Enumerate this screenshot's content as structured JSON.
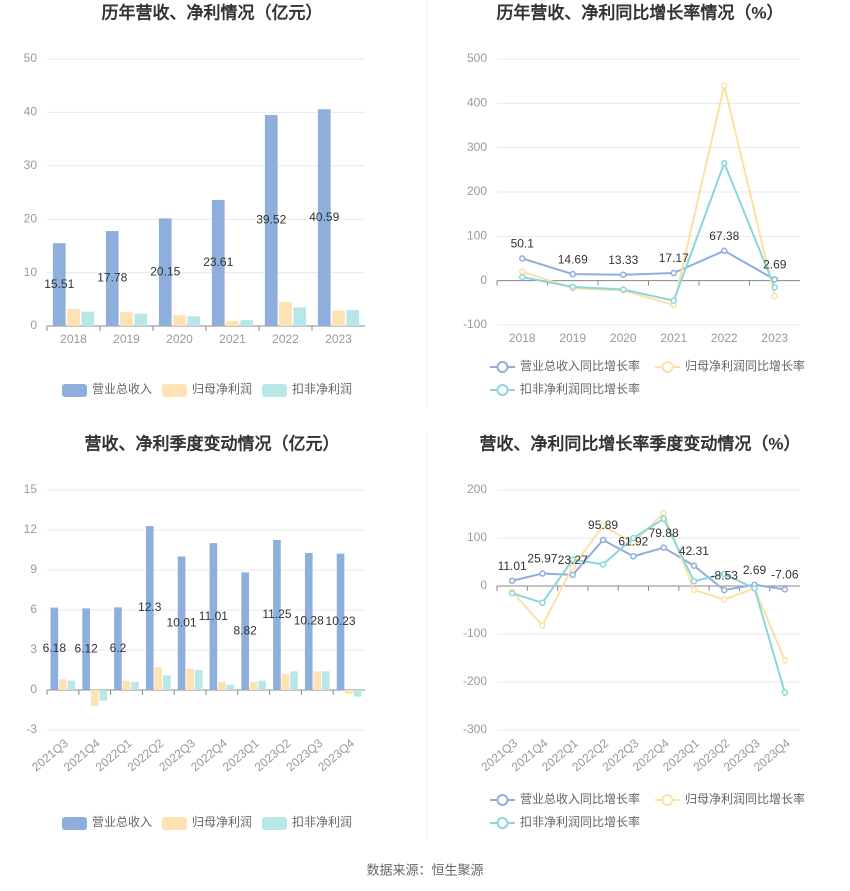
{
  "chart_data": [
    {
      "type": "bar",
      "title": "历年营收、净利情况（亿元）",
      "categories": [
        "2018",
        "2019",
        "2020",
        "2021",
        "2022",
        "2023"
      ],
      "series": [
        {
          "name": "营业总收入",
          "color": "#8eaedc",
          "values": [
            15.51,
            17.78,
            20.15,
            23.61,
            39.52,
            40.59
          ],
          "show_labels": true
        },
        {
          "name": "归母净利润",
          "color": "#fde3b3",
          "values": [
            3.2,
            2.6,
            2.0,
            0.9,
            4.5,
            2.9
          ]
        },
        {
          "name": "扣非净利润",
          "color": "#b9e6e6",
          "values": [
            2.7,
            2.3,
            1.8,
            1.1,
            3.5,
            3.0
          ]
        }
      ],
      "ylim": [
        0,
        50
      ],
      "yticks": [
        0,
        10,
        20,
        30,
        40,
        50
      ],
      "grid": true
    },
    {
      "type": "line",
      "title": "历年营收、净利同比增长率情况（%）",
      "categories": [
        "2018",
        "2019",
        "2020",
        "2021",
        "2022",
        "2023"
      ],
      "series": [
        {
          "name": "营业总收入同比增长率",
          "color": "#8eaedc",
          "values": [
            50.1,
            14.69,
            13.33,
            17.17,
            67.38,
            2.69
          ],
          "show_labels": true
        },
        {
          "name": "归母净利润同比增长率",
          "color": "#fde0a6",
          "values": [
            20,
            -17,
            -22,
            -55,
            440,
            -35
          ]
        },
        {
          "name": "扣非净利润同比增长率",
          "color": "#8ad6dc",
          "values": [
            8,
            -14,
            -20,
            -45,
            265,
            -15
          ]
        }
      ],
      "ylim": [
        -100,
        500
      ],
      "yticks": [
        -100,
        0,
        100,
        200,
        300,
        400,
        500
      ],
      "grid": true
    },
    {
      "type": "bar",
      "title": "营收、净利季度变动情况（亿元）",
      "categories": [
        "2021Q3",
        "2021Q4",
        "2022Q1",
        "2022Q2",
        "2022Q3",
        "2022Q4",
        "2023Q1",
        "2023Q2",
        "2023Q3",
        "2023Q4"
      ],
      "series": [
        {
          "name": "营业总收入",
          "color": "#8eaedc",
          "values": [
            6.18,
            6.12,
            6.2,
            12.3,
            10.01,
            11.01,
            8.82,
            11.25,
            10.28,
            10.23
          ],
          "show_labels": true
        },
        {
          "name": "归母净利润",
          "color": "#fde3b3",
          "values": [
            0.8,
            -1.2,
            0.7,
            1.7,
            1.6,
            0.6,
            0.6,
            1.2,
            1.4,
            -0.3
          ]
        },
        {
          "name": "扣非净利润",
          "color": "#b9e6e6",
          "values": [
            0.7,
            -0.8,
            0.6,
            1.1,
            1.5,
            0.4,
            0.7,
            1.4,
            1.4,
            -0.5
          ]
        }
      ],
      "ylim": [
        -3,
        15
      ],
      "yticks": [
        -3,
        0,
        3,
        6,
        9,
        12,
        15
      ],
      "grid": true
    },
    {
      "type": "line",
      "title": "营收、净利同比增长率季度变动情况（%）",
      "categories": [
        "2021Q3",
        "2021Q4",
        "2022Q1",
        "2022Q2",
        "2022Q3",
        "2022Q4",
        "2023Q1",
        "2023Q2",
        "2023Q3",
        "2023Q4"
      ],
      "series": [
        {
          "name": "营业总收入同比增长率",
          "color": "#8eaedc",
          "values": [
            11.01,
            25.97,
            23.27,
            95.89,
            61.92,
            79.88,
            42.31,
            -8.53,
            2.69,
            -7.06
          ],
          "show_labels": true
        },
        {
          "name": "归母净利润同比增长率",
          "color": "#fde0a6",
          "values": [
            -12,
            -82,
            40,
            125,
            90,
            152,
            -8,
            -28,
            -5,
            -155
          ]
        },
        {
          "name": "扣非净利润同比增长率",
          "color": "#8ad6dc",
          "values": [
            -15,
            -35,
            55,
            45,
            100,
            140,
            10,
            25,
            -5,
            -222
          ]
        }
      ],
      "ylim": [
        -300,
        200
      ],
      "yticks": [
        -300,
        -200,
        -100,
        0,
        100,
        200
      ],
      "grid": true
    }
  ],
  "source": "数据来源：恒生聚源"
}
